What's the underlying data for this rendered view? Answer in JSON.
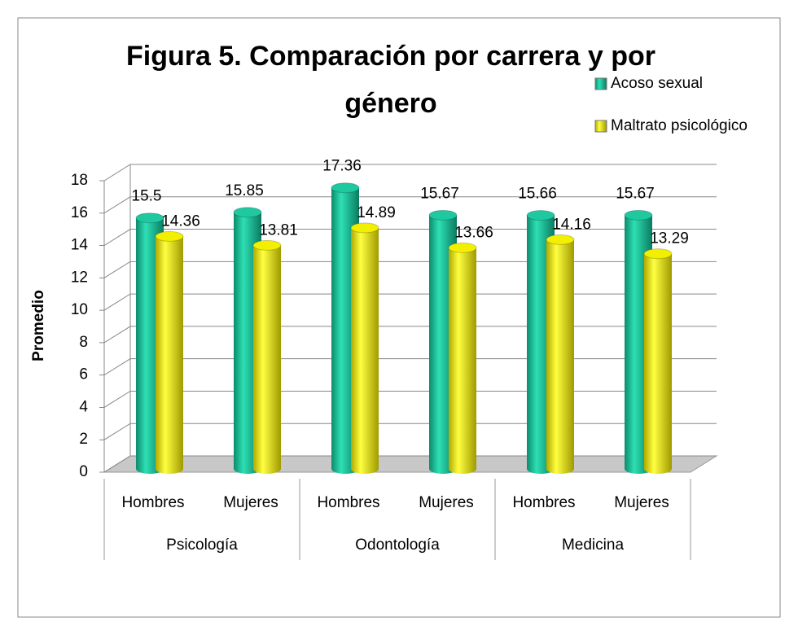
{
  "chart_data": {
    "type": "bar3d",
    "title": "Figura 5. Comparación por carrera y por género",
    "y_label": "Promedio",
    "categories": [
      "Hombres",
      "Mujeres",
      "Hombres",
      "Mujeres",
      "Hombres",
      "Mujeres"
    ],
    "groups": [
      "Psicología",
      "Odontología",
      "Medicina"
    ],
    "series": [
      {
        "name": "Acoso sexual",
        "color": "#1fc9a0",
        "values": [
          15.5,
          15.85,
          17.36,
          15.67,
          15.66,
          15.67
        ]
      },
      {
        "name": "Maltrato psicológico",
        "color": "#f2f000",
        "values": [
          14.36,
          13.81,
          14.89,
          13.66,
          14.16,
          13.29
        ]
      }
    ],
    "ylim": [
      0,
      18
    ],
    "yticks": [
      0,
      2,
      4,
      6,
      8,
      10,
      12,
      14,
      16,
      18
    ],
    "grid": true,
    "legend": "top-right"
  }
}
